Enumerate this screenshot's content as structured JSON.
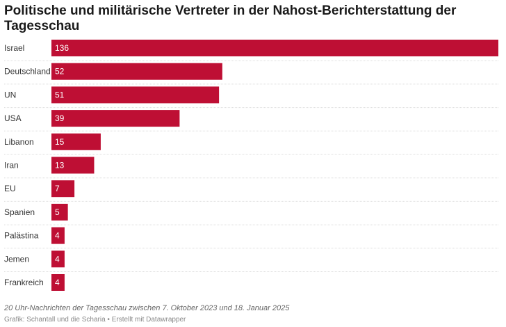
{
  "chart_data": {
    "type": "bar",
    "orientation": "horizontal",
    "title": "Politische und militärische Vertreter in der Nahost-Berichterstattung der Tagesschau",
    "categories": [
      "Israel",
      "Deutschland",
      "UN",
      "USA",
      "Libanon",
      "Iran",
      "EU",
      "Spanien",
      "Palästina",
      "Jemen",
      "Frankreich"
    ],
    "values": [
      136,
      52,
      51,
      39,
      15,
      13,
      7,
      5,
      4,
      4,
      4
    ],
    "xlim": [
      0,
      136
    ],
    "bar_color": "#be0f34",
    "grid": false,
    "legend": "none"
  },
  "notes": "20 Uhr-Nachrichten der Tagesschau zwischen 7. Oktober 2023 und 18. Januar 2025",
  "byline": "Grafik: Schantall und die Scharia • Erstellt mit Datawrapper"
}
